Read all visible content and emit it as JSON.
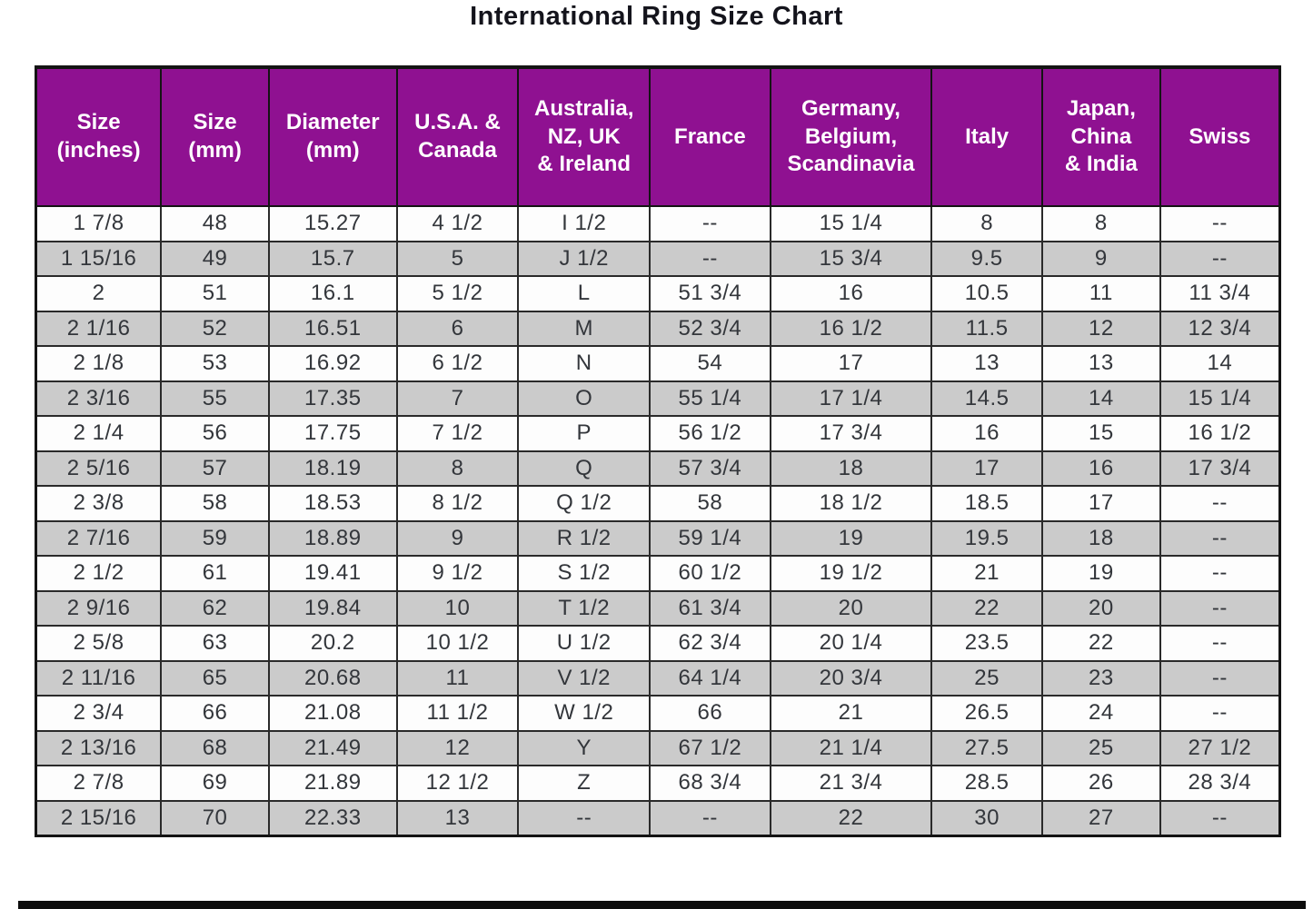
{
  "title": "International Ring Size Chart",
  "colors": {
    "header_bg": "#8F1191",
    "header_text": "#ffffff",
    "row_bg": "#fdfdfd",
    "row_alt_bg": "#cbcbcb",
    "border": "#141414",
    "cell_text": "#33363b"
  },
  "chart_data": {
    "type": "table",
    "title": "International Ring Size Chart",
    "layout_hints": {
      "alternating_row_shading": true,
      "header_position": "top",
      "grid": true
    },
    "columns": [
      {
        "id": "size-inches",
        "label": "Size\n(inches)",
        "width_pct": 10.06
      },
      {
        "id": "size-mm",
        "label": "Size\n(mm)",
        "width_pct": 8.67
      },
      {
        "id": "diameter-mm",
        "label": "Diameter\n(mm)",
        "width_pct": 10.28
      },
      {
        "id": "usa-canada",
        "label": "U.S.A. &\nCanada",
        "width_pct": 9.77
      },
      {
        "id": "aus-nz-uk",
        "label": "Australia,\nNZ, UK\n& Ireland",
        "width_pct": 10.57
      },
      {
        "id": "france",
        "label": "France",
        "width_pct": 9.69
      },
      {
        "id": "germany",
        "label": "Germany,\nBelgium,\nScandinavia",
        "width_pct": 12.97
      },
      {
        "id": "italy",
        "label": "Italy",
        "width_pct": 8.89
      },
      {
        "id": "japan",
        "label": "Japan,\nChina\n& India",
        "width_pct": 9.48
      },
      {
        "id": "swiss",
        "label": "Swiss",
        "width_pct": 9.62
      }
    ],
    "rows": [
      [
        "1 7/8",
        "48",
        "15.27",
        "4 1/2",
        "I 1/2",
        "--",
        "15 1/4",
        "8",
        "8",
        "--"
      ],
      [
        "1 15/16",
        "49",
        "15.7",
        "5",
        "J 1/2",
        "--",
        "15 3/4",
        "9.5",
        "9",
        "--"
      ],
      [
        "2",
        "51",
        "16.1",
        "5 1/2",
        "L",
        "51 3/4",
        "16",
        "10.5",
        "11",
        "11 3/4"
      ],
      [
        "2 1/16",
        "52",
        "16.51",
        "6",
        "M",
        "52 3/4",
        "16 1/2",
        "11.5",
        "12",
        "12 3/4"
      ],
      [
        "2 1/8",
        "53",
        "16.92",
        "6 1/2",
        "N",
        "54",
        "17",
        "13",
        "13",
        "14"
      ],
      [
        "2 3/16",
        "55",
        "17.35",
        "7",
        "O",
        "55 1/4",
        "17 1/4",
        "14.5",
        "14",
        "15 1/4"
      ],
      [
        "2 1/4",
        "56",
        "17.75",
        "7 1/2",
        "P",
        "56 1/2",
        "17 3/4",
        "16",
        "15",
        "16 1/2"
      ],
      [
        "2 5/16",
        "57",
        "18.19",
        "8",
        "Q",
        "57 3/4",
        "18",
        "17",
        "16",
        "17 3/4"
      ],
      [
        "2 3/8",
        "58",
        "18.53",
        "8 1/2",
        "Q 1/2",
        "58",
        "18 1/2",
        "18.5",
        "17",
        "--"
      ],
      [
        "2 7/16",
        "59",
        "18.89",
        "9",
        "R 1/2",
        "59 1/4",
        "19",
        "19.5",
        "18",
        "--"
      ],
      [
        "2 1/2",
        "61",
        "19.41",
        "9 1/2",
        "S 1/2",
        "60 1/2",
        "19 1/2",
        "21",
        "19",
        "--"
      ],
      [
        "2 9/16",
        "62",
        "19.84",
        "10",
        "T 1/2",
        "61 3/4",
        "20",
        "22",
        "20",
        "--"
      ],
      [
        "2 5/8",
        "63",
        "20.2",
        "10 1/2",
        "U 1/2",
        "62 3/4",
        "20 1/4",
        "23.5",
        "22",
        "--"
      ],
      [
        "2 11/16",
        "65",
        "20.68",
        "11",
        "V 1/2",
        "64 1/4",
        "20 3/4",
        "25",
        "23",
        "--"
      ],
      [
        "2 3/4",
        "66",
        "21.08",
        "11 1/2",
        "W 1/2",
        "66",
        "21",
        "26.5",
        "24",
        "--"
      ],
      [
        "2 13/16",
        "68",
        "21.49",
        "12",
        "Y",
        "67 1/2",
        "21 1/4",
        "27.5",
        "25",
        "27 1/2"
      ],
      [
        "2 7/8",
        "69",
        "21.89",
        "12 1/2",
        "Z",
        "68 3/4",
        "21 3/4",
        "28.5",
        "26",
        "28 3/4"
      ],
      [
        "2 15/16",
        "70",
        "22.33",
        "13",
        "--",
        "--",
        "22",
        "30",
        "27",
        "--"
      ]
    ]
  }
}
